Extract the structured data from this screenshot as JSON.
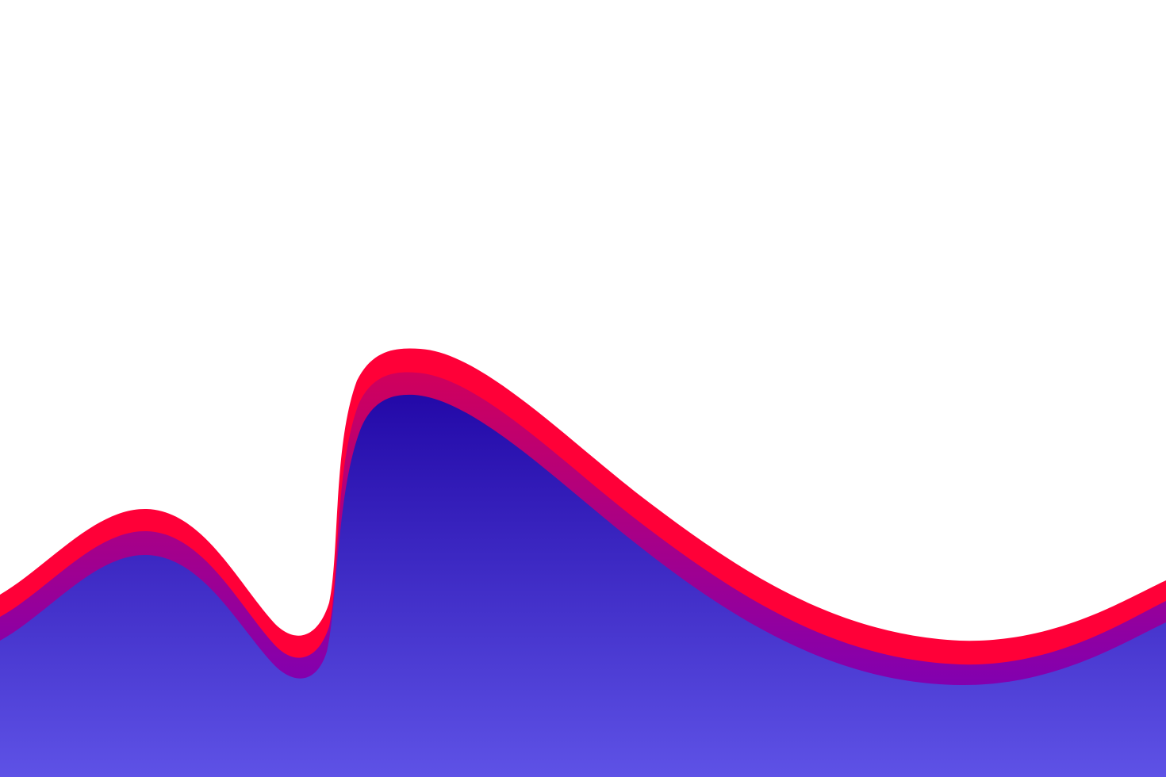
{
  "background": {
    "color": "#ffffff"
  },
  "waves": [
    {
      "name": "top-band",
      "color": "#ff0038"
    },
    {
      "name": "middle-band",
      "color_top": "#d0005c",
      "color_bottom": "#6b00c8"
    },
    {
      "name": "bottom-fill",
      "color_top": "#2309a8",
      "color_bottom": "#5e52e6"
    }
  ]
}
